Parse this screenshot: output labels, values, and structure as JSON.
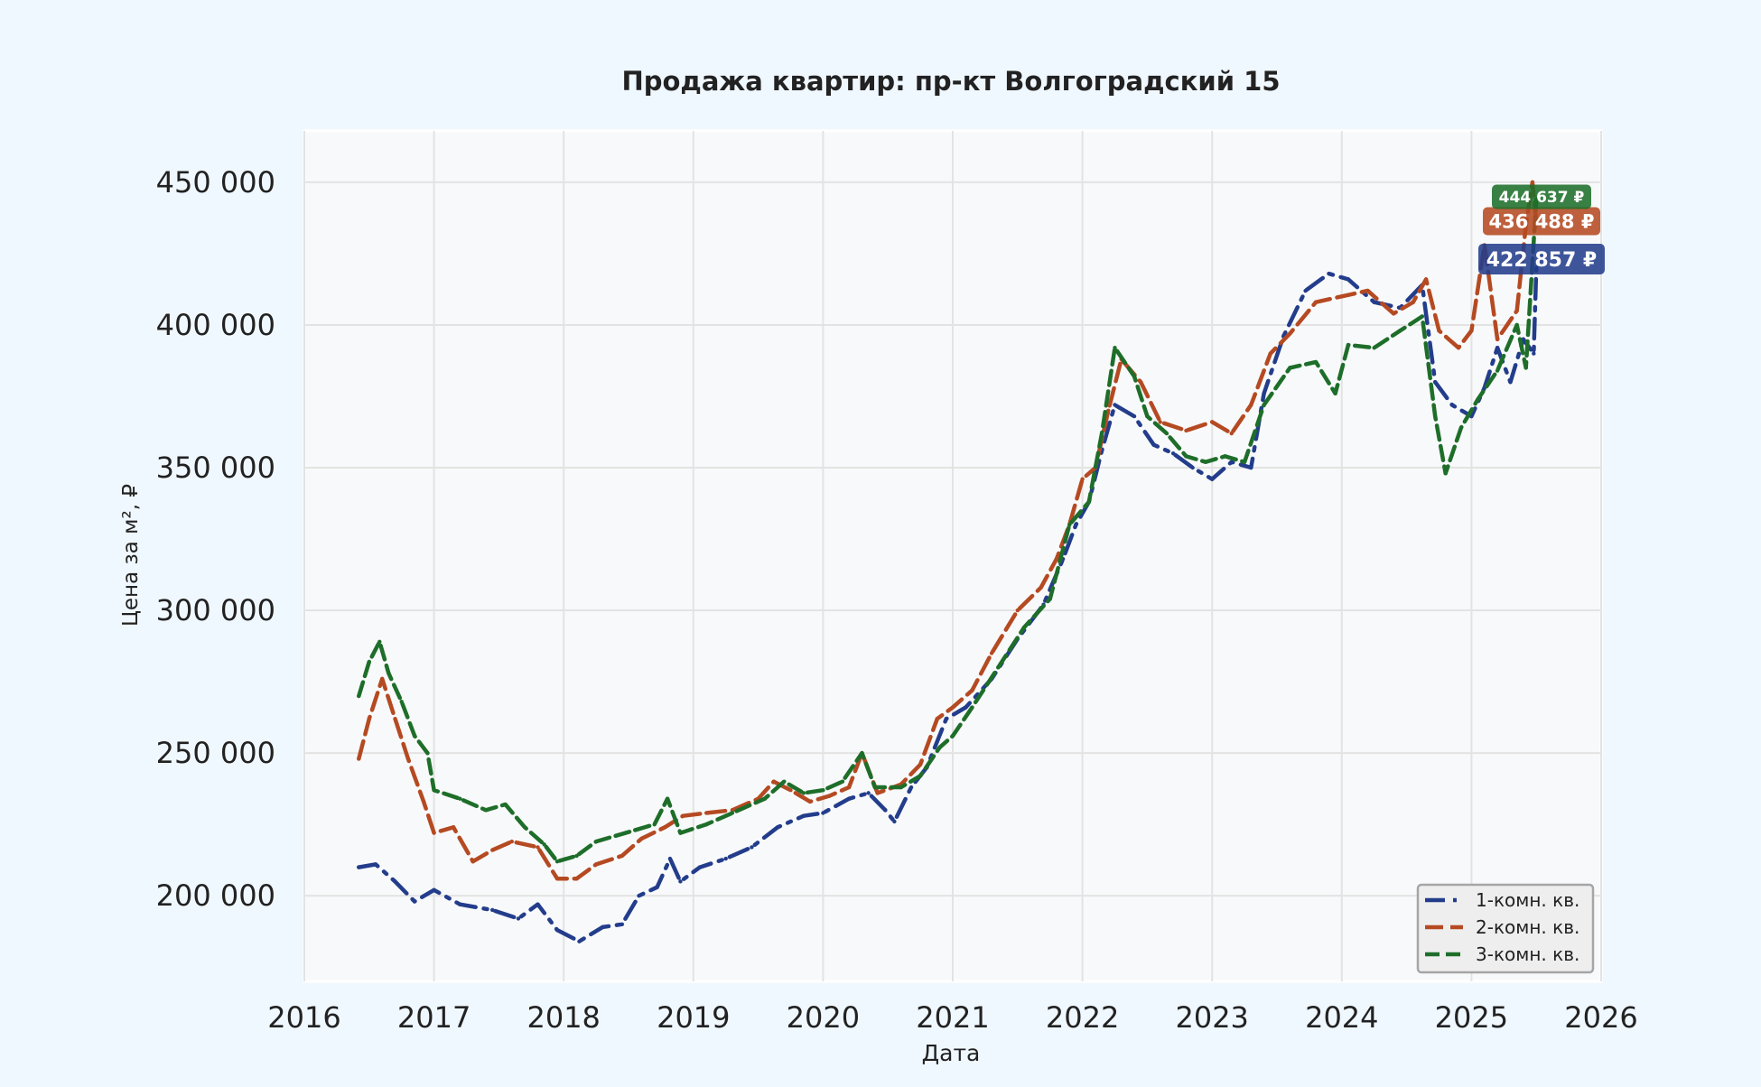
{
  "chart_data": {
    "type": "line",
    "title": "Продажа квартир: пр-кт Волгоградский 15",
    "xlabel": "Дата",
    "ylabel": "Цена за м², ₽",
    "x_ticks": [
      "2016",
      "2017",
      "2018",
      "2019",
      "2020",
      "2021",
      "2022",
      "2023",
      "2024",
      "2025",
      "2026"
    ],
    "y_ticks": [
      "200 000",
      "250 000",
      "300 000",
      "350 000",
      "400 000",
      "450 000"
    ],
    "xlim": [
      2016.0,
      2026.0
    ],
    "ylim": [
      170000,
      468000
    ],
    "grid": true,
    "legend_position": "bottom-right",
    "series": [
      {
        "name": "1-комн. кв.",
        "color": "#233d8c",
        "dash": "dash-dot",
        "last_label": "422 857 ₽",
        "last_value": 422857,
        "points": [
          [
            2016.42,
            210000
          ],
          [
            2016.55,
            211000
          ],
          [
            2016.7,
            205000
          ],
          [
            2016.85,
            198000
          ],
          [
            2017.0,
            202000
          ],
          [
            2017.2,
            197000
          ],
          [
            2017.45,
            195000
          ],
          [
            2017.65,
            192000
          ],
          [
            2017.8,
            197000
          ],
          [
            2017.95,
            188000
          ],
          [
            2018.12,
            184000
          ],
          [
            2018.3,
            189000
          ],
          [
            2018.45,
            190000
          ],
          [
            2018.58,
            200000
          ],
          [
            2018.72,
            203000
          ],
          [
            2018.82,
            213000
          ],
          [
            2018.9,
            205000
          ],
          [
            2019.05,
            210000
          ],
          [
            2019.25,
            213000
          ],
          [
            2019.45,
            217000
          ],
          [
            2019.65,
            224000
          ],
          [
            2019.85,
            228000
          ],
          [
            2020.0,
            229000
          ],
          [
            2020.2,
            234000
          ],
          [
            2020.35,
            236000
          ],
          [
            2020.48,
            230000
          ],
          [
            2020.55,
            226000
          ],
          [
            2020.68,
            238000
          ],
          [
            2020.8,
            245000
          ],
          [
            2020.95,
            262000
          ],
          [
            2021.1,
            266000
          ],
          [
            2021.3,
            276000
          ],
          [
            2021.5,
            290000
          ],
          [
            2021.7,
            302000
          ],
          [
            2021.85,
            318000
          ],
          [
            2021.95,
            330000
          ],
          [
            2022.05,
            338000
          ],
          [
            2022.15,
            356000
          ],
          [
            2022.25,
            372000
          ],
          [
            2022.4,
            368000
          ],
          [
            2022.55,
            358000
          ],
          [
            2022.7,
            355000
          ],
          [
            2022.85,
            350000
          ],
          [
            2023.0,
            346000
          ],
          [
            2023.15,
            352000
          ],
          [
            2023.3,
            350000
          ],
          [
            2023.4,
            376000
          ],
          [
            2023.55,
            396000
          ],
          [
            2023.72,
            412000
          ],
          [
            2023.9,
            418000
          ],
          [
            2024.05,
            416000
          ],
          [
            2024.25,
            408000
          ],
          [
            2024.45,
            406000
          ],
          [
            2024.62,
            414000
          ],
          [
            2024.72,
            380000
          ],
          [
            2024.85,
            372000
          ],
          [
            2025.0,
            368000
          ],
          [
            2025.1,
            378000
          ],
          [
            2025.2,
            392000
          ],
          [
            2025.3,
            380000
          ],
          [
            2025.4,
            395000
          ],
          [
            2025.48,
            390000
          ],
          [
            2025.5,
            420000
          ]
        ]
      },
      {
        "name": "2-комн. кв.",
        "color": "#b54a22",
        "dash": "dashed",
        "last_label": "436 488 ₽",
        "last_value": 436488,
        "points": [
          [
            2016.42,
            248000
          ],
          [
            2016.5,
            262000
          ],
          [
            2016.6,
            276000
          ],
          [
            2016.7,
            262000
          ],
          [
            2016.8,
            248000
          ],
          [
            2016.92,
            233000
          ],
          [
            2017.0,
            222000
          ],
          [
            2017.15,
            224000
          ],
          [
            2017.3,
            212000
          ],
          [
            2017.45,
            216000
          ],
          [
            2017.6,
            219000
          ],
          [
            2017.8,
            217000
          ],
          [
            2017.95,
            206000
          ],
          [
            2018.1,
            206000
          ],
          [
            2018.25,
            211000
          ],
          [
            2018.45,
            214000
          ],
          [
            2018.6,
            220000
          ],
          [
            2018.78,
            224000
          ],
          [
            2018.92,
            228000
          ],
          [
            2019.1,
            229000
          ],
          [
            2019.3,
            230000
          ],
          [
            2019.5,
            234000
          ],
          [
            2019.62,
            240000
          ],
          [
            2019.75,
            237000
          ],
          [
            2019.9,
            233000
          ],
          [
            2020.05,
            235000
          ],
          [
            2020.2,
            238000
          ],
          [
            2020.3,
            250000
          ],
          [
            2020.42,
            236000
          ],
          [
            2020.6,
            239000
          ],
          [
            2020.75,
            246000
          ],
          [
            2020.88,
            262000
          ],
          [
            2021.0,
            266000
          ],
          [
            2021.15,
            272000
          ],
          [
            2021.3,
            285000
          ],
          [
            2021.5,
            300000
          ],
          [
            2021.68,
            308000
          ],
          [
            2021.8,
            318000
          ],
          [
            2021.9,
            330000
          ],
          [
            2022.0,
            346000
          ],
          [
            2022.1,
            350000
          ],
          [
            2022.2,
            370000
          ],
          [
            2022.3,
            388000
          ],
          [
            2022.45,
            380000
          ],
          [
            2022.6,
            366000
          ],
          [
            2022.8,
            363000
          ],
          [
            2023.0,
            366000
          ],
          [
            2023.15,
            362000
          ],
          [
            2023.3,
            372000
          ],
          [
            2023.45,
            390000
          ],
          [
            2023.6,
            397000
          ],
          [
            2023.8,
            408000
          ],
          [
            2024.0,
            410000
          ],
          [
            2024.2,
            412000
          ],
          [
            2024.4,
            404000
          ],
          [
            2024.55,
            408000
          ],
          [
            2024.65,
            416000
          ],
          [
            2024.75,
            398000
          ],
          [
            2024.9,
            392000
          ],
          [
            2025.0,
            398000
          ],
          [
            2025.1,
            428000
          ],
          [
            2025.2,
            395000
          ],
          [
            2025.35,
            405000
          ],
          [
            2025.42,
            435000
          ],
          [
            2025.47,
            450000
          ],
          [
            2025.5,
            436000
          ]
        ]
      },
      {
        "name": "3-комн. кв.",
        "color": "#1e6e2a",
        "dash": "dashed-marker",
        "last_label": "444 637 ₽",
        "last_value": 444637,
        "points": [
          [
            2016.42,
            270000
          ],
          [
            2016.5,
            282000
          ],
          [
            2016.58,
            289000
          ],
          [
            2016.65,
            278000
          ],
          [
            2016.75,
            268000
          ],
          [
            2016.85,
            256000
          ],
          [
            2016.95,
            250000
          ],
          [
            2017.0,
            237000
          ],
          [
            2017.2,
            234000
          ],
          [
            2017.4,
            230000
          ],
          [
            2017.55,
            232000
          ],
          [
            2017.7,
            224000
          ],
          [
            2017.85,
            218000
          ],
          [
            2017.95,
            212000
          ],
          [
            2018.1,
            214000
          ],
          [
            2018.25,
            219000
          ],
          [
            2018.4,
            221000
          ],
          [
            2018.55,
            223000
          ],
          [
            2018.7,
            225000
          ],
          [
            2018.8,
            234000
          ],
          [
            2018.9,
            222000
          ],
          [
            2019.1,
            225000
          ],
          [
            2019.3,
            229000
          ],
          [
            2019.55,
            234000
          ],
          [
            2019.7,
            240000
          ],
          [
            2019.85,
            236000
          ],
          [
            2020.0,
            237000
          ],
          [
            2020.15,
            240000
          ],
          [
            2020.3,
            250000
          ],
          [
            2020.4,
            238000
          ],
          [
            2020.6,
            238000
          ],
          [
            2020.75,
            242000
          ],
          [
            2020.9,
            252000
          ],
          [
            2021.0,
            256000
          ],
          [
            2021.15,
            266000
          ],
          [
            2021.35,
            280000
          ],
          [
            2021.55,
            294000
          ],
          [
            2021.75,
            304000
          ],
          [
            2021.9,
            330000
          ],
          [
            2022.05,
            338000
          ],
          [
            2022.15,
            362000
          ],
          [
            2022.25,
            392000
          ],
          [
            2022.4,
            382000
          ],
          [
            2022.5,
            368000
          ],
          [
            2022.65,
            362000
          ],
          [
            2022.8,
            354000
          ],
          [
            2022.95,
            352000
          ],
          [
            2023.1,
            354000
          ],
          [
            2023.25,
            352000
          ],
          [
            2023.4,
            372000
          ],
          [
            2023.6,
            385000
          ],
          [
            2023.8,
            387000
          ],
          [
            2023.95,
            376000
          ],
          [
            2024.05,
            393000
          ],
          [
            2024.25,
            392000
          ],
          [
            2024.45,
            398000
          ],
          [
            2024.62,
            403000
          ],
          [
            2024.72,
            368000
          ],
          [
            2024.8,
            348000
          ],
          [
            2024.92,
            364000
          ],
          [
            2025.05,
            374000
          ],
          [
            2025.2,
            384000
          ],
          [
            2025.35,
            400000
          ],
          [
            2025.42,
            385000
          ],
          [
            2025.5,
            444000
          ]
        ]
      }
    ]
  }
}
